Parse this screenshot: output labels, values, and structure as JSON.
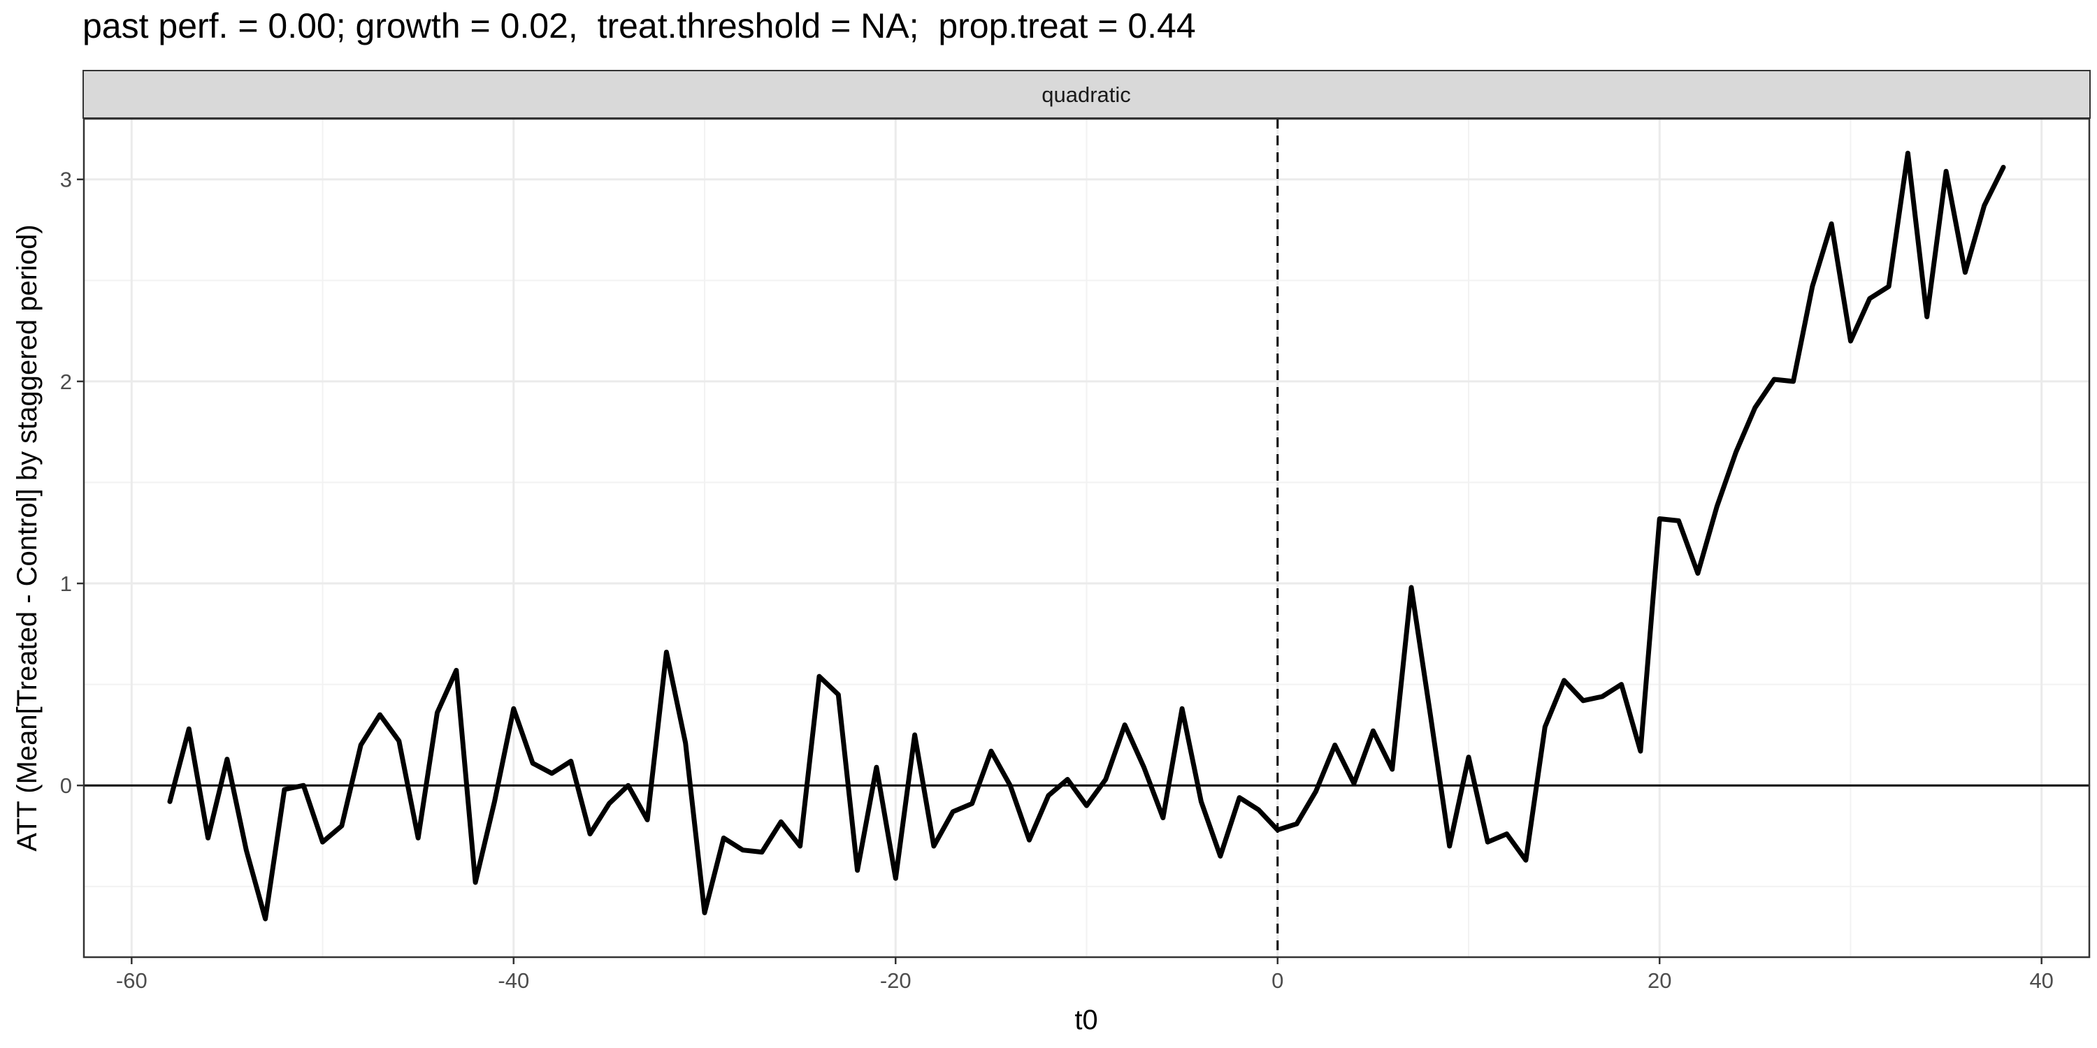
{
  "chart_data": {
    "type": "line",
    "title": "past perf. = 0.00; growth = 0.02,  treat.threshold = NA;  prop.treat = 0.44",
    "facet": "quadratic",
    "xlabel": "t0",
    "ylabel": "ATT (Mean[Treated - Control] by staggered period)",
    "xlim": [
      -62.5,
      42.5
    ],
    "ylim": [
      -0.85,
      3.3
    ],
    "x_ticks": [
      -60,
      -40,
      -20,
      0,
      20,
      40
    ],
    "x_tick_labels": [
      "-60",
      "-40",
      "-20",
      "0",
      "20",
      "40"
    ],
    "y_ticks": [
      0,
      1,
      2,
      3
    ],
    "y_tick_labels": [
      "0",
      "1",
      "2",
      "3"
    ],
    "grid": true,
    "hline": 0,
    "vline": 0,
    "series": [
      {
        "color": "#000000",
        "x": [
          -58,
          -57,
          -56,
          -55,
          -54,
          -53,
          -52,
          -51,
          -50,
          -49,
          -48,
          -47,
          -46,
          -45,
          -44,
          -43,
          -42,
          -41,
          -40,
          -39,
          -38,
          -37,
          -36,
          -35,
          -34,
          -33,
          -32,
          -31,
          -30,
          -29,
          -28,
          -27,
          -26,
          -25,
          -24,
          -23,
          -22,
          -21,
          -20,
          -19,
          -18,
          -17,
          -16,
          -15,
          -14,
          -13,
          -12,
          -11,
          -10,
          -9,
          -8,
          -7,
          -6,
          -5,
          -4,
          -3,
          -2,
          -1,
          0,
          1,
          2,
          3,
          4,
          5,
          6,
          7,
          8,
          9,
          10,
          11,
          12,
          13,
          14,
          15,
          16,
          17,
          18,
          19,
          20,
          21,
          22,
          23,
          24,
          25,
          26,
          27,
          28,
          29,
          30,
          31,
          32,
          33,
          34,
          35,
          36,
          37,
          38
        ],
        "values": [
          -0.08,
          0.28,
          -0.26,
          0.13,
          -0.32,
          -0.66,
          -0.02,
          0.0,
          -0.28,
          -0.2,
          0.2,
          0.35,
          0.22,
          -0.26,
          0.36,
          0.57,
          -0.48,
          -0.08,
          0.38,
          0.11,
          0.06,
          0.12,
          -0.24,
          -0.09,
          0.0,
          -0.17,
          0.66,
          0.21,
          -0.63,
          -0.26,
          -0.32,
          -0.33,
          -0.18,
          -0.3,
          0.54,
          0.45,
          -0.42,
          0.09,
          -0.46,
          0.25,
          -0.3,
          -0.13,
          -0.09,
          0.17,
          0.0,
          -0.27,
          -0.05,
          0.03,
          -0.1,
          0.03,
          0.3,
          0.09,
          -0.16,
          0.38,
          -0.08,
          -0.35,
          -0.06,
          -0.12,
          -0.22,
          -0.19,
          -0.03,
          0.2,
          0.01,
          0.27,
          0.08,
          0.98,
          0.35,
          -0.3,
          0.14,
          -0.28,
          -0.24,
          -0.37,
          0.29,
          0.52,
          0.42,
          0.44,
          0.5,
          0.17,
          1.32,
          1.31,
          1.05,
          1.38,
          1.65,
          1.87,
          2.01,
          2.0,
          2.47,
          2.78,
          2.2,
          2.41,
          2.47,
          3.13,
          2.32,
          3.04,
          2.54,
          2.87,
          3.06
        ]
      }
    ]
  }
}
